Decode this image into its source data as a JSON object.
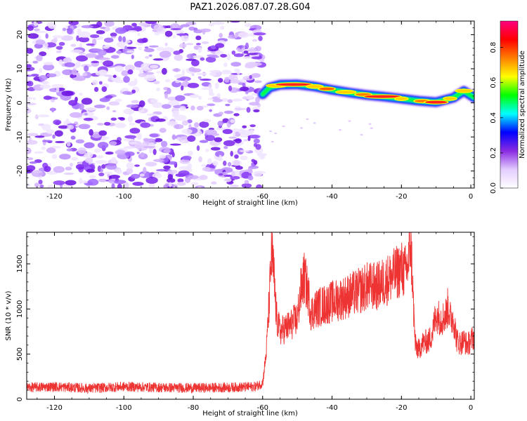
{
  "title": "PAZ1.2026.087.07.28.G04",
  "chart_data": [
    {
      "type": "heatmap",
      "panel": "spectrogram",
      "xlabel": "Height of straight line (km)",
      "ylabel": "Frequency (Hz)",
      "xlim": [
        -128,
        1
      ],
      "ylim": [
        -25,
        24
      ],
      "xticks": [
        -120,
        -100,
        -80,
        -60,
        -40,
        -20,
        0
      ],
      "yticks": [
        -20,
        -10,
        0,
        10,
        20
      ],
      "noise_region_x": [
        -128,
        -60
      ],
      "signal_track": {
        "x": [
          -60,
          -58,
          -55,
          -50,
          -45,
          -40,
          -35,
          -30,
          -25,
          -20,
          -15,
          -10,
          -5,
          -2,
          1
        ],
        "y": [
          2.5,
          4.5,
          5.3,
          5.4,
          4.8,
          3.8,
          3.0,
          2.3,
          1.8,
          1.2,
          0.6,
          0.2,
          1.5,
          3.5,
          1.5
        ]
      },
      "colorbar": {
        "label": "Normalized spectral amplitude",
        "range": [
          0,
          0.95
        ],
        "ticks": [
          "0.0",
          "0.2",
          "0.4",
          "0.6",
          "0.8"
        ],
        "colors": [
          "#ffffff",
          "#e3ccff",
          "#8a2be2",
          "#0000ff",
          "#00ffff",
          "#00ff00",
          "#ffff00",
          "#ff8000",
          "#ff0000",
          "#ff0080"
        ]
      }
    },
    {
      "type": "line",
      "panel": "snr",
      "xlabel": "Height of straight line (km)",
      "ylabel": "SNR (10 * v/v)",
      "xlim": [
        -128,
        1
      ],
      "ylim": [
        0,
        1850
      ],
      "xticks": [
        -120,
        -100,
        -80,
        -60,
        -40,
        -20,
        0
      ],
      "yticks": [
        0,
        500,
        1000,
        1500
      ],
      "color": "#ee3333",
      "series": [
        {
          "name": "SNR",
          "x": [
            -128,
            -120,
            -110,
            -100,
            -90,
            -80,
            -70,
            -62,
            -60,
            -59,
            -58,
            -57.5,
            -57,
            -56,
            -55,
            -52,
            -50,
            -49,
            -48,
            -47,
            -46,
            -45,
            -42,
            -40,
            -37,
            -35,
            -32,
            -30,
            -27,
            -25,
            -22,
            -20,
            -19,
            -18,
            -17.5,
            -17,
            -16.5,
            -16,
            -15,
            -14,
            -12,
            -11,
            -10,
            -9,
            -8,
            -7,
            -6.5,
            -6,
            -5,
            -4,
            -3,
            -2,
            -1,
            0,
            1
          ],
          "y": [
            130,
            140,
            120,
            140,
            130,
            125,
            130,
            140,
            180,
            500,
            1150,
            1600,
            1500,
            900,
            750,
            820,
            900,
            1200,
            1350,
            1200,
            950,
            1000,
            1050,
            1080,
            1120,
            1150,
            1200,
            1250,
            1250,
            1300,
            1380,
            1450,
            1400,
            1500,
            1750,
            1500,
            1000,
            600,
            550,
            620,
            650,
            750,
            950,
            900,
            900,
            950,
            1050,
            900,
            900,
            650,
            620,
            650,
            600,
            650,
            700
          ]
        }
      ]
    }
  ]
}
